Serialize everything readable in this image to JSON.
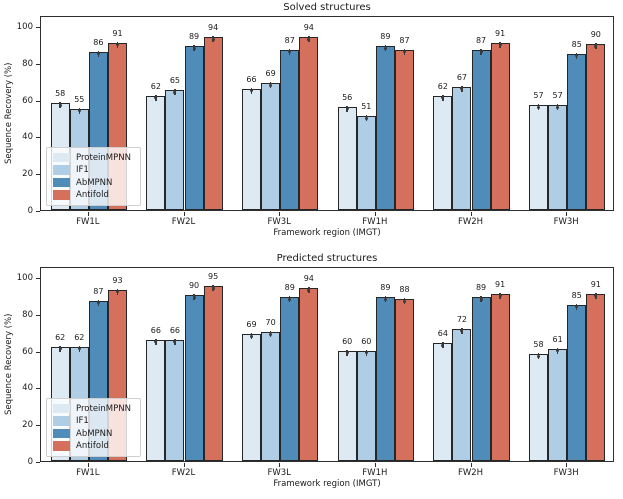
{
  "style": {
    "bar_edge_color": "#262626",
    "error_marker_color": "#3a3a3a",
    "axis_color": "#2e2e2e",
    "text_color": "#1a1a1a",
    "legend_background": "rgba(255,255,255,0.8)"
  },
  "chart_data": [
    {
      "type": "bar",
      "title": "Solved structures",
      "xlabel": "Framework region (IMGT)",
      "ylabel": "Sequence Recovery (%)",
      "ylim": [
        0,
        106
      ],
      "yticks": [
        0,
        20,
        40,
        60,
        80,
        100
      ],
      "grid": false,
      "legend_position": "lower-left",
      "categories": [
        "FW1L",
        "FW2L",
        "FW3L",
        "FW1H",
        "FW2H",
        "FW3H"
      ],
      "series": [
        {
          "name": "ProteinMPNN",
          "color": "#dde9f3",
          "values": [
            58,
            62,
            66,
            56,
            62,
            57
          ]
        },
        {
          "name": "IF1",
          "color": "#afcee5",
          "values": [
            55,
            65,
            69,
            51,
            67,
            57
          ]
        },
        {
          "name": "AbMPNN",
          "color": "#4f8cba",
          "values": [
            86,
            89,
            87,
            89,
            87,
            85
          ]
        },
        {
          "name": "Antifold",
          "color": "#d5705c",
          "values": [
            91,
            94,
            94,
            87,
            91,
            90
          ]
        }
      ]
    },
    {
      "type": "bar",
      "title": "Predicted structures",
      "xlabel": "Framework region (IMGT)",
      "ylabel": "Sequence Recovery (%)",
      "ylim": [
        0,
        106
      ],
      "yticks": [
        0,
        20,
        40,
        60,
        80,
        100
      ],
      "grid": false,
      "legend_position": "lower-left",
      "categories": [
        "FW1L",
        "FW2L",
        "FW3L",
        "FW1H",
        "FW2H",
        "FW3H"
      ],
      "series": [
        {
          "name": "ProteinMPNN",
          "color": "#dde9f3",
          "values": [
            62,
            66,
            69,
            60,
            64,
            58
          ]
        },
        {
          "name": "IF1",
          "color": "#afcee5",
          "values": [
            62,
            66,
            70,
            60,
            72,
            61
          ]
        },
        {
          "name": "AbMPNN",
          "color": "#4f8cba",
          "values": [
            87,
            90,
            89,
            89,
            89,
            85
          ]
        },
        {
          "name": "Antifold",
          "color": "#d5705c",
          "values": [
            93,
            95,
            94,
            88,
            91,
            91
          ]
        }
      ]
    }
  ]
}
